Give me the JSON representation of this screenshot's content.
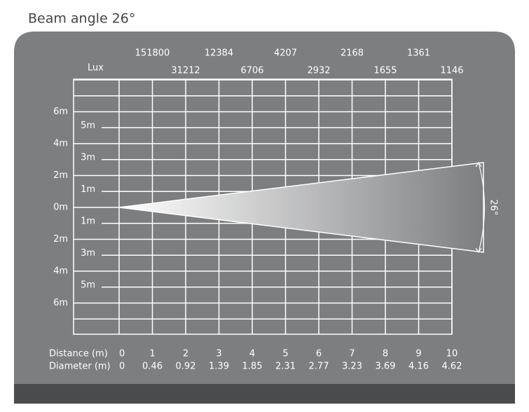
{
  "title": "Beam angle 26°",
  "lux_label": "Lux",
  "lux": [
    "151800",
    "31212",
    "12384",
    "6706",
    "4207",
    "2932",
    "2168",
    "1655",
    "1361",
    "1146"
  ],
  "height_labels_upper": [
    "6m",
    "5m",
    "4m",
    "3m",
    "2m",
    "1m"
  ],
  "center_label": "0m",
  "height_labels_lower": [
    "1m",
    "2m",
    "3m",
    "4m",
    "5m",
    "6m"
  ],
  "angle_label": "26°",
  "distance_label": "Distance (m)",
  "distances": [
    "0",
    "1",
    "2",
    "3",
    "4",
    "5",
    "6",
    "7",
    "8",
    "9",
    "10"
  ],
  "diameter_label": "Diameter (m)",
  "diameters": [
    "0",
    "0.46",
    "0.92",
    "1.39",
    "1.85",
    "2.31",
    "2.77",
    "3.23",
    "3.69",
    "4.16",
    "4.62"
  ]
}
